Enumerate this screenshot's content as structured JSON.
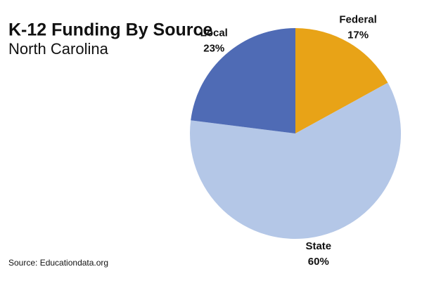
{
  "chart_data": {
    "type": "pie",
    "title": "K-12 Funding By Source",
    "subtitle": "North Carolina",
    "source": "Source: Educationdata.org",
    "categories": [
      "Federal",
      "State",
      "Local"
    ],
    "values": [
      17,
      60,
      23
    ],
    "value_labels": [
      "17%",
      "60%",
      "23%"
    ],
    "colors": [
      "#e8a317",
      "#b4c7e7",
      "#4f6bb5"
    ]
  }
}
